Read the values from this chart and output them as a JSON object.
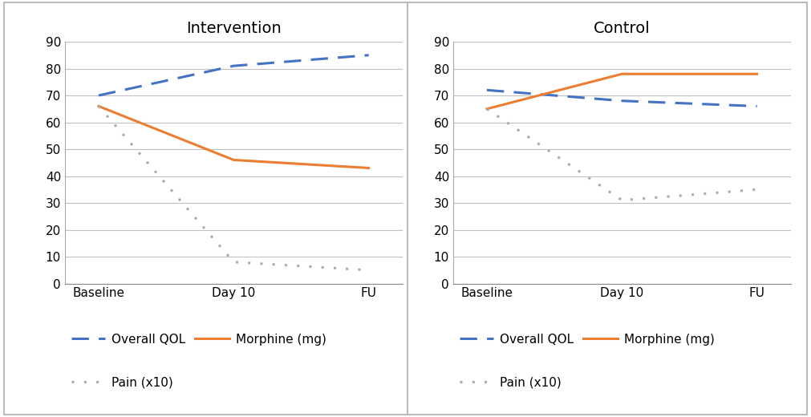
{
  "intervention": {
    "title": "Intervention",
    "x_labels": [
      "Baseline",
      "Day 10",
      "FU"
    ],
    "qol": [
      70,
      81,
      85
    ],
    "morphine": [
      66,
      46,
      43
    ],
    "pain": [
      66,
      8,
      5
    ]
  },
  "control": {
    "title": "Control",
    "x_labels": [
      "Baseline",
      "Day 10",
      "FU"
    ],
    "qol": [
      72,
      68,
      66
    ],
    "morphine": [
      65,
      78,
      78
    ],
    "pain": [
      65,
      31,
      35
    ]
  },
  "ylim": [
    0,
    90
  ],
  "yticks": [
    0,
    10,
    20,
    30,
    40,
    50,
    60,
    70,
    80,
    90
  ],
  "qol_color": "#4472C4",
  "morphine_color": "#ED7D31",
  "pain_color": "#ABABAB",
  "legend_labels": [
    "Overall QOL",
    "Morphine (mg)",
    "Pain (x10)"
  ],
  "background_color": "#FFFFFF",
  "grid_color": "#C0C0C0",
  "title_fontsize": 14,
  "tick_fontsize": 11,
  "legend_fontsize": 11,
  "line_width": 2.2
}
